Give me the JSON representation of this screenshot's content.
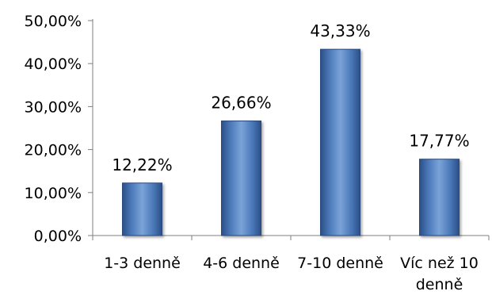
{
  "chart_data": {
    "type": "bar",
    "categories": [
      [
        "1-3 denně"
      ],
      [
        "4-6 denně"
      ],
      [
        "7-10 denně"
      ],
      [
        "Víc než 10",
        "denně"
      ]
    ],
    "values": [
      12.22,
      26.66,
      43.33,
      17.77
    ],
    "data_labels": [
      "12,22%",
      "26,66%",
      "43,33%",
      "17,77%"
    ],
    "yticks": [
      0,
      10,
      20,
      30,
      40,
      50
    ],
    "ytick_labels": [
      "0,00%",
      "10,00%",
      "20,00%",
      "30,00%",
      "40,00%",
      "50,00%"
    ],
    "ylim": [
      0,
      50
    ],
    "grid": false,
    "legend": "none",
    "bar_color": "#4f81bd"
  }
}
